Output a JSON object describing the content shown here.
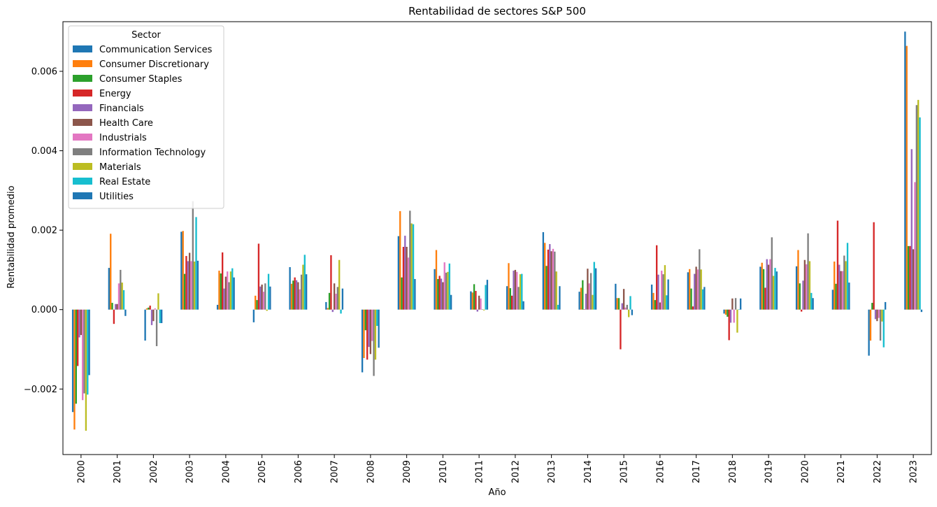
{
  "chart_data": {
    "type": "bar",
    "title": "Rentabilidad de sectores S&P 500",
    "xlabel": "Año",
    "ylabel": "Rentabilidad promedio",
    "ylim": [
      -0.00365,
      0.00725
    ],
    "yticks": [
      -0.002,
      0.0,
      0.002,
      0.004,
      0.006
    ],
    "ytick_labels": [
      "−0.002",
      "0.000",
      "0.002",
      "0.004",
      "0.006"
    ],
    "grid": false,
    "legend": {
      "title": "Sector",
      "placement": "upper-left"
    },
    "categories": [
      "2000",
      "2001",
      "2002",
      "2003",
      "2004",
      "2005",
      "2006",
      "2007",
      "2008",
      "2009",
      "2010",
      "2011",
      "2012",
      "2013",
      "2014",
      "2015",
      "2016",
      "2017",
      "2018",
      "2019",
      "2020",
      "2021",
      "2022",
      "2023"
    ],
    "series": [
      {
        "name": "Communication Services",
        "color": "#1f77b4",
        "values": [
          -0.00258,
          0.00105,
          -0.00078,
          0.00196,
          0.00012,
          -0.00032,
          0.00107,
          0.00019,
          -0.00158,
          0.00185,
          0.00102,
          0.00046,
          0.00059,
          0.00195,
          0.00045,
          0.00065,
          0.00063,
          0.00094,
          -0.0001,
          0.00108,
          0.00109,
          0.0005,
          -0.00116,
          0.007
        ]
      },
      {
        "name": "Consumer Discretionary",
        "color": "#ff7f0e",
        "values": [
          -0.00302,
          0.00191,
          3e-05,
          0.00198,
          0.00098,
          0.00035,
          0.00065,
          4e-05,
          -0.00122,
          0.00248,
          0.0015,
          0.00043,
          0.00117,
          0.00168,
          0.00055,
          0.00029,
          0.00042,
          0.00102,
          -0.00013,
          0.00118,
          0.0015,
          0.00121,
          -0.00078,
          0.00664
        ]
      },
      {
        "name": "Consumer Staples",
        "color": "#2ca02c",
        "values": [
          -0.00237,
          0.00017,
          5e-05,
          0.0009,
          0.00091,
          0.00024,
          0.00073,
          0.00042,
          -0.00052,
          0.00081,
          0.00077,
          0.00064,
          0.00054,
          0.0011,
          0.00074,
          0.00029,
          0.00024,
          0.00053,
          -0.00018,
          0.00102,
          0.00066,
          0.00065,
          0.00017,
          0.0016
        ]
      },
      {
        "name": "Energy",
        "color": "#d62728",
        "values": [
          -0.00142,
          -0.00036,
          0.0001,
          0.00135,
          0.00144,
          0.00166,
          0.00081,
          0.00137,
          -0.00126,
          0.00158,
          0.00085,
          0.00047,
          0.00035,
          0.00151,
          1e-05,
          -0.001,
          0.00162,
          8e-05,
          -0.00077,
          0.00055,
          -5e-05,
          0.00224,
          0.0022,
          0.0016
        ]
      },
      {
        "name": "Financials",
        "color": "#9467bd",
        "values": [
          -0.0007,
          0.00014,
          -0.00039,
          0.00122,
          0.00053,
          0.00058,
          0.00074,
          -6e-05,
          -0.00094,
          0.00186,
          0.00078,
          -5e-05,
          0.00098,
          0.00165,
          0.0004,
          0.00016,
          0.00088,
          0.0009,
          -0.00033,
          0.00127,
          0.00073,
          0.00113,
          -0.00024,
          0.00404
        ]
      },
      {
        "name": "Health Care",
        "color": "#8c564b",
        "values": [
          -0.00064,
          0.00014,
          -0.00029,
          0.00143,
          0.00083,
          0.00063,
          0.00069,
          0.00066,
          -0.00112,
          0.00158,
          0.00069,
          0.00035,
          0.001,
          0.00147,
          0.00103,
          0.00052,
          0.00018,
          0.00108,
          0.00028,
          0.00113,
          0.00125,
          0.00097,
          -0.00029,
          0.00152
        ]
      },
      {
        "name": "Industrials",
        "color": "#e377c2",
        "values": [
          -0.00228,
          0.00066,
          3e-05,
          0.00122,
          0.00096,
          0.00045,
          0.00051,
          0.0004,
          -0.00079,
          0.00131,
          0.00119,
          0.00028,
          0.00095,
          0.00153,
          0.00066,
          5e-05,
          0.00098,
          0.00101,
          -0.00033,
          0.00127,
          0.00114,
          0.00097,
          -0.00021,
          0.00321
        ]
      },
      {
        "name": "Information Technology",
        "color": "#7f7f7f",
        "values": [
          -0.00211,
          0.001,
          -0.00092,
          0.00273,
          0.00069,
          0.00066,
          0.00088,
          0.00057,
          -0.00167,
          0.00249,
          0.00093,
          1e-05,
          0.00057,
          0.00146,
          0.00092,
          0.00012,
          0.00089,
          0.00152,
          0.00029,
          0.00182,
          0.00192,
          0.00136,
          -0.00078,
          0.00515
        ]
      },
      {
        "name": "Materials",
        "color": "#bcbd22",
        "values": [
          -0.00305,
          0.00068,
          0.00041,
          0.00121,
          0.00096,
          -3e-05,
          0.00113,
          0.00125,
          -0.00126,
          0.00217,
          0.00095,
          -2e-05,
          0.00089,
          0.00096,
          0.00037,
          -0.00019,
          0.00112,
          0.00101,
          -0.00058,
          0.00085,
          0.00122,
          0.00122,
          -0.0003,
          0.00528
        ]
      },
      {
        "name": "Real Estate",
        "color": "#17becf",
        "values": [
          -0.00214,
          0.00049,
          -0.00034,
          0.00233,
          0.00104,
          0.0009,
          0.00138,
          -0.0001,
          -0.00041,
          0.00215,
          0.00116,
          0.00062,
          0.0009,
          0.00012,
          0.0012,
          0.00034,
          0.00036,
          0.00051,
          1e-05,
          0.00105,
          0.00042,
          0.00168,
          -0.00095,
          0.00484
        ]
      },
      {
        "name": "Utilities",
        "color": "#1f77b4",
        "values": [
          -0.00165,
          -0.00016,
          -0.00034,
          0.00123,
          0.00081,
          0.00058,
          0.00089,
          0.00053,
          -0.00096,
          0.00077,
          0.00037,
          0.00075,
          0.00021,
          0.00059,
          0.00104,
          -0.00014,
          0.00076,
          0.00057,
          0.00028,
          0.00096,
          0.00029,
          0.00068,
          0.00019,
          -6e-05
        ]
      }
    ]
  }
}
